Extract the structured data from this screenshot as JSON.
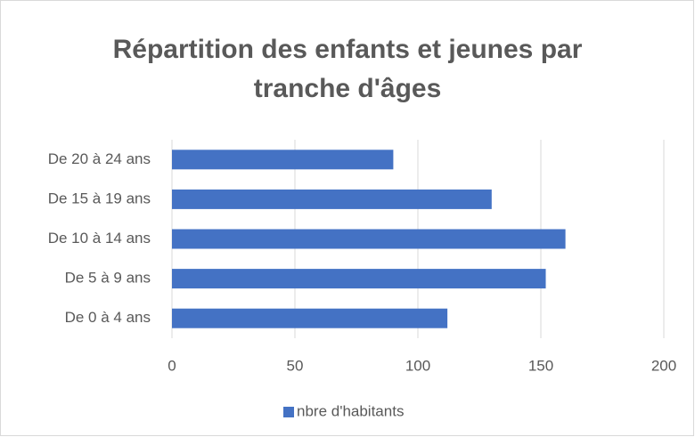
{
  "chart_data": {
    "type": "bar",
    "orientation": "horizontal",
    "title": "Répartition des enfants et jeunes par tranche d'âges",
    "categories": [
      "De 0 à 4 ans",
      "De 5 à 9 ans",
      "De 10 à 14 ans",
      "De 15 à 19 ans",
      "De 20 à 24 ans"
    ],
    "series": [
      {
        "name": "nbre d'habitants",
        "color": "#4472c4",
        "values": [
          112,
          152,
          160,
          130,
          90
        ]
      }
    ],
    "xlim": [
      0,
      200
    ],
    "xticks": [
      0,
      50,
      100,
      150,
      200
    ],
    "grid": true,
    "legend": "bottom"
  }
}
